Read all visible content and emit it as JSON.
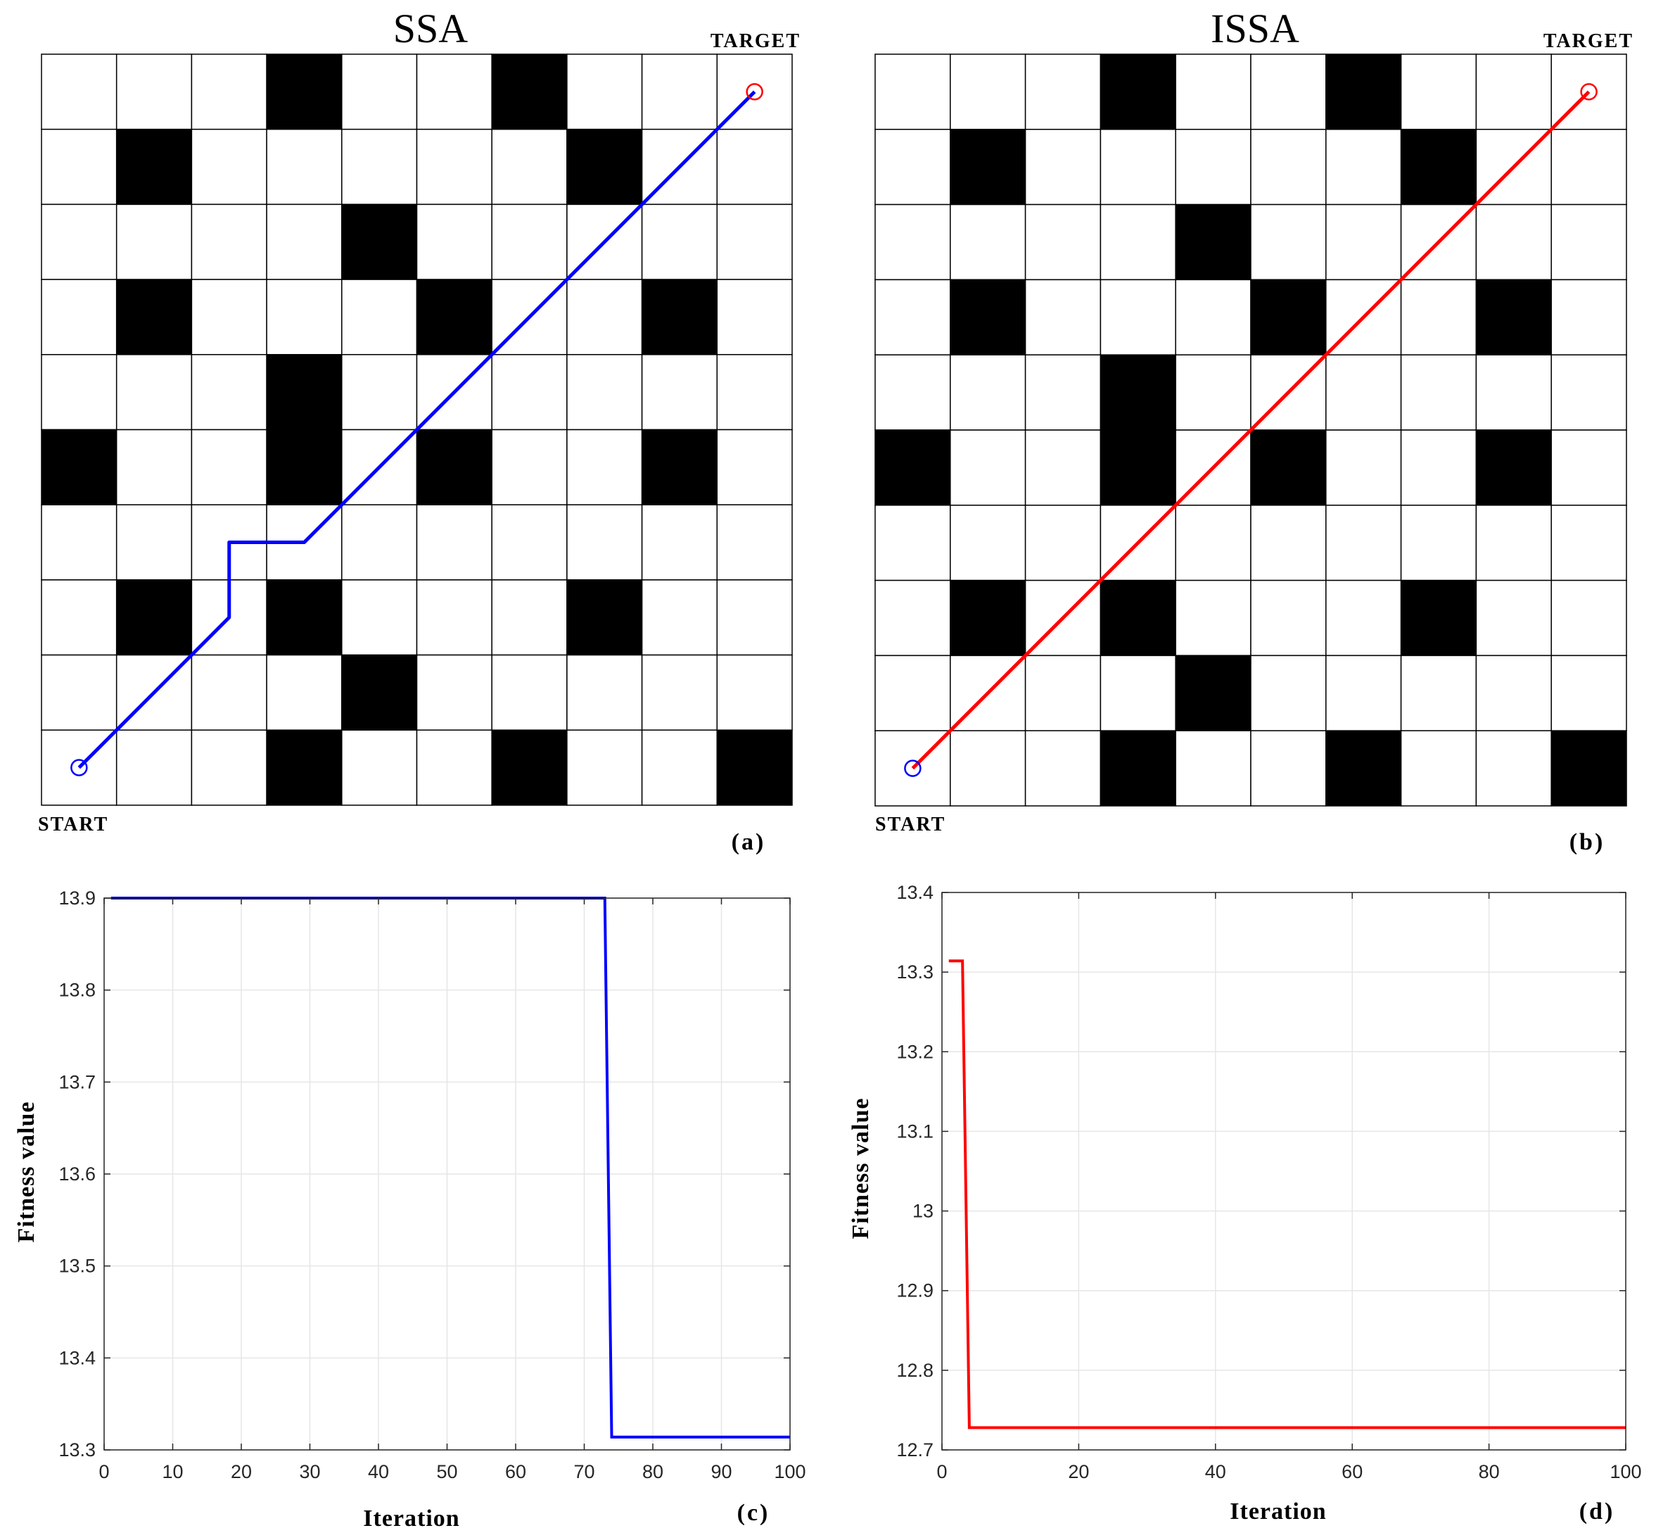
{
  "colors": {
    "ssa": "#0000ff",
    "issa": "#ff0000",
    "obstacle": "#000000",
    "free": "#ffffff",
    "grid": "#e6e6e6"
  },
  "chart_data": [
    {
      "type": "heatmap",
      "panel": "(a)",
      "title": "SSA",
      "start_label": "START",
      "target_label": "TARGET",
      "grid_size": [
        10,
        10
      ],
      "obstacles": [
        [
          3,
          0
        ],
        [
          6,
          0
        ],
        [
          1,
          1
        ],
        [
          7,
          1
        ],
        [
          4,
          2
        ],
        [
          1,
          3
        ],
        [
          5,
          3
        ],
        [
          8,
          3
        ],
        [
          3,
          4
        ],
        [
          0,
          5
        ],
        [
          3,
          5
        ],
        [
          5,
          5
        ],
        [
          8,
          5
        ],
        [
          1,
          7
        ],
        [
          3,
          7
        ],
        [
          7,
          7
        ],
        [
          4,
          8
        ],
        [
          3,
          9
        ],
        [
          6,
          9
        ],
        [
          9,
          9
        ]
      ],
      "start": [
        0.5,
        9.5
      ],
      "target": [
        9.5,
        0.5
      ],
      "path": [
        [
          0.5,
          9.5
        ],
        [
          2.5,
          7.5
        ],
        [
          2.5,
          6.5
        ],
        [
          3.5,
          6.5
        ],
        [
          9.5,
          0.5
        ]
      ],
      "path_color": "#0000ff"
    },
    {
      "type": "heatmap",
      "panel": "(b)",
      "title": "ISSA",
      "start_label": "START",
      "target_label": "TARGET",
      "grid_size": [
        10,
        10
      ],
      "obstacles": [
        [
          3,
          0
        ],
        [
          6,
          0
        ],
        [
          1,
          1
        ],
        [
          7,
          1
        ],
        [
          4,
          2
        ],
        [
          1,
          3
        ],
        [
          5,
          3
        ],
        [
          8,
          3
        ],
        [
          3,
          4
        ],
        [
          0,
          5
        ],
        [
          3,
          5
        ],
        [
          5,
          5
        ],
        [
          8,
          5
        ],
        [
          1,
          7
        ],
        [
          3,
          7
        ],
        [
          7,
          7
        ],
        [
          4,
          8
        ],
        [
          3,
          9
        ],
        [
          6,
          9
        ],
        [
          9,
          9
        ]
      ],
      "start": [
        0.5,
        9.5
      ],
      "target": [
        9.5,
        0.5
      ],
      "path": [
        [
          0.5,
          9.5
        ],
        [
          9.5,
          0.5
        ]
      ],
      "path_color": "#ff0000"
    },
    {
      "type": "line",
      "panel": "(c)",
      "xlabel": "Iteration",
      "ylabel": "Fitness value",
      "xlim": [
        0,
        100
      ],
      "ylim": [
        13.3,
        13.9
      ],
      "xticks": [
        0,
        10,
        20,
        30,
        40,
        50,
        60,
        70,
        80,
        90,
        100
      ],
      "xtick_labels": [
        "0",
        "10",
        "20",
        "30",
        "40",
        "50",
        "60",
        "70",
        "80",
        "90",
        "100"
      ],
      "yticks": [
        13.3,
        13.4,
        13.5,
        13.6,
        13.7,
        13.8,
        13.9
      ],
      "ytick_labels": [
        "13.3",
        "13.4",
        "13.5",
        "13.6",
        "13.7",
        "13.8",
        "13.9"
      ],
      "grid": true,
      "series": [
        {
          "color": "#0000ff",
          "x": [
            1,
            73,
            74,
            100
          ],
          "y": [
            13.9,
            13.9,
            13.314,
            13.314
          ]
        }
      ]
    },
    {
      "type": "line",
      "panel": "(d)",
      "xlabel": "Iteration",
      "ylabel": "Fitness value",
      "xlim": [
        0,
        100
      ],
      "ylim": [
        12.7,
        13.4
      ],
      "xticks": [
        0,
        20,
        40,
        60,
        80,
        100
      ],
      "xtick_labels": [
        "0",
        "20",
        "40",
        "60",
        "80",
        "100"
      ],
      "yticks": [
        12.7,
        12.8,
        12.9,
        13.0,
        13.1,
        13.2,
        13.3,
        13.4
      ],
      "ytick_labels": [
        "12.7",
        "12.8",
        "12.9",
        "13",
        "13.1",
        "13.2",
        "13.3",
        "13.4"
      ],
      "grid": true,
      "series": [
        {
          "color": "#ff0000",
          "x": [
            1,
            3,
            4,
            100
          ],
          "y": [
            13.314,
            13.314,
            12.728,
            12.728
          ]
        }
      ]
    }
  ]
}
